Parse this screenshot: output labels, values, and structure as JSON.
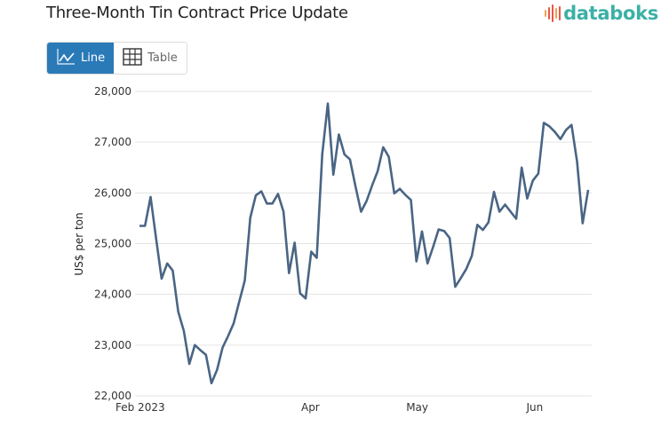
{
  "header": {
    "title": "Three-Month Tin Contract Price Update",
    "logo_text": "databoks"
  },
  "toggle": {
    "line_label": "Line",
    "table_label": "Table",
    "active": "line",
    "line_icon": "line-chart-icon",
    "table_icon": "table-grid-icon"
  },
  "colors": {
    "accent": "#2a7ab8",
    "line": "#4a6584",
    "grid": "#e3e3e3",
    "logo": "#3bb0a6",
    "logo_bar_1": "#f2a24a",
    "logo_bar_2": "#e9574b"
  },
  "chart_data": {
    "type": "line",
    "title": "Three-Month Tin Contract Price Update",
    "xlabel": "",
    "ylabel": "US$ per ton",
    "ylim": [
      22000,
      28000
    ],
    "yticks": [
      22000,
      23000,
      24000,
      25000,
      26000,
      27000,
      28000
    ],
    "ytick_labels": [
      "22,000",
      "23,000",
      "24,000",
      "25,000",
      "26,000",
      "27,000",
      "28,000"
    ],
    "xlim_index": [
      0,
      84
    ],
    "xticks": [
      {
        "index": 0,
        "label": "Feb 2023"
      },
      {
        "index": 32,
        "label": "Apr"
      },
      {
        "index": 52,
        "label": "May"
      },
      {
        "index": 74,
        "label": "Jun"
      }
    ],
    "grid": true,
    "legend": "none",
    "series": [
      {
        "name": "Three-Month Tin Contract",
        "values": [
          25350,
          25350,
          25920,
          25100,
          24310,
          24610,
          24470,
          23660,
          23280,
          22630,
          23000,
          22900,
          22810,
          22250,
          22510,
          22950,
          23180,
          23430,
          23850,
          24270,
          25510,
          25950,
          26030,
          25790,
          25790,
          25980,
          25630,
          24420,
          25020,
          24020,
          23920,
          24840,
          24720,
          26760,
          27760,
          26360,
          27150,
          26760,
          26660,
          26130,
          25630,
          25840,
          26150,
          26430,
          26900,
          26710,
          25990,
          26080,
          25960,
          25860,
          24650,
          25240,
          24610,
          24930,
          25280,
          25250,
          25110,
          24150,
          24320,
          24500,
          24760,
          25370,
          25270,
          25420,
          26020,
          25630,
          25770,
          25630,
          25490,
          26500,
          25890,
          26240,
          26380,
          27380,
          27310,
          27200,
          27060,
          27240,
          27340,
          26620,
          25400,
          26060
        ]
      }
    ]
  }
}
